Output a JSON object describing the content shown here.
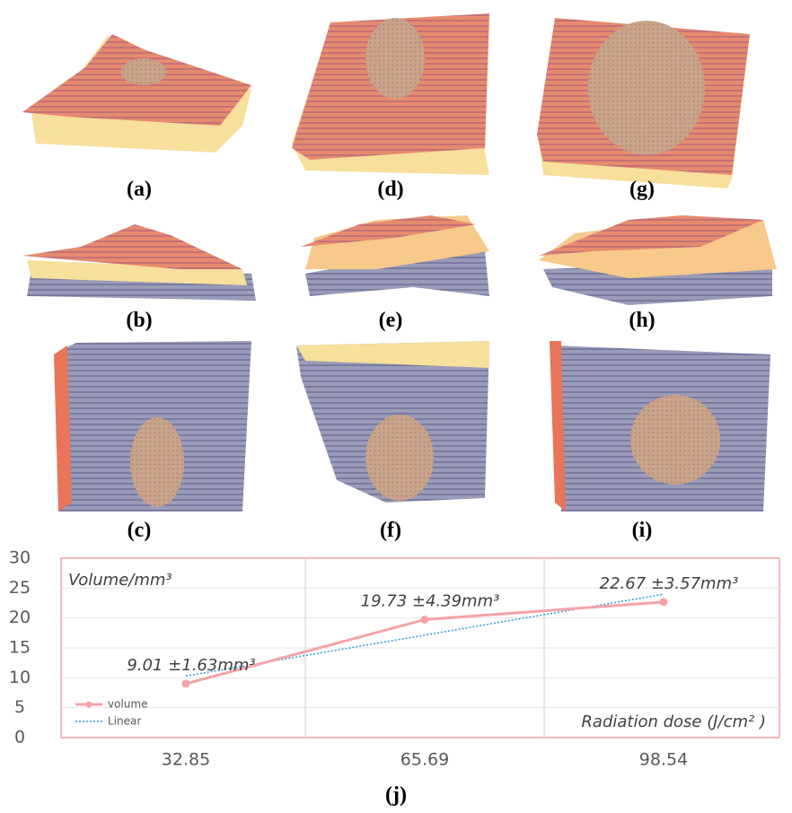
{
  "panels": [
    "(a)",
    "(d)",
    "(g)",
    "(b)",
    "(e)",
    "(h)",
    "(c)",
    "(f)",
    "(i)"
  ],
  "chart_data": {
    "type": "line",
    "caption": "(j)",
    "y_label": "Volume/mm³",
    "x_label": "Radiation dose (J/cm² )",
    "categories": [
      "32.85",
      "65.69",
      "98.54"
    ],
    "series": [
      {
        "name": "volume",
        "color": "#f4a3a8",
        "values": [
          9.01,
          19.73,
          22.67
        ],
        "value_labels": [
          "9.01 ±1.63mm³",
          "19.73 ±4.39mm³",
          "22.67 ±3.57mm³"
        ]
      },
      {
        "name": "Linear",
        "color": "#2e9bd6",
        "dash": true,
        "values": [
          10.31,
          17.14,
          23.97
        ]
      }
    ],
    "ylim": [
      0,
      30
    ],
    "yticks": [
      0,
      5,
      10,
      15,
      20,
      25,
      30
    ],
    "grid": true,
    "legend": "bottom-left"
  }
}
